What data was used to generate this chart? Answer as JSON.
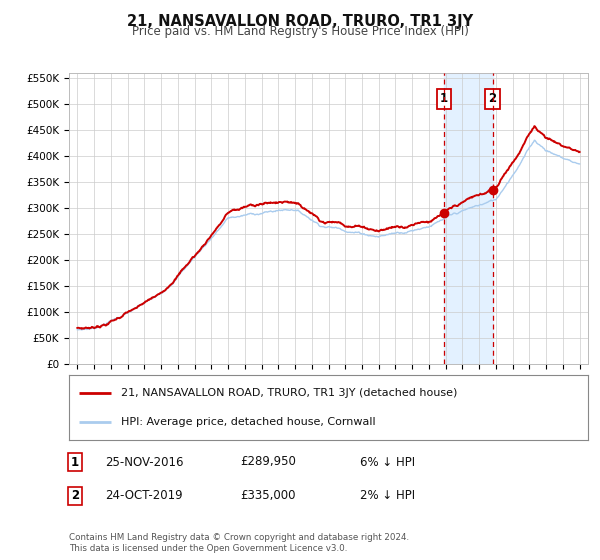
{
  "title": "21, NANSAVALLON ROAD, TRURO, TR1 3JY",
  "subtitle": "Price paid vs. HM Land Registry's House Price Index (HPI)",
  "legend_label_red": "21, NANSAVALLON ROAD, TRURO, TR1 3JY (detached house)",
  "legend_label_blue": "HPI: Average price, detached house, Cornwall",
  "footer_line1": "Contains HM Land Registry data © Crown copyright and database right 2024.",
  "footer_line2": "This data is licensed under the Open Government Licence v3.0.",
  "transaction1_label": "1",
  "transaction1_date": "25-NOV-2016",
  "transaction1_price": "£289,950",
  "transaction1_hpi": "6% ↓ HPI",
  "transaction2_label": "2",
  "transaction2_date": "24-OCT-2019",
  "transaction2_price": "£335,000",
  "transaction2_hpi": "2% ↓ HPI",
  "transaction1_year": 2016.9,
  "transaction2_year": 2019.8,
  "transaction1_value": 289950,
  "transaction2_value": 335000,
  "shade_start": 2016.9,
  "shade_end": 2019.8,
  "ylim": [
    0,
    560000
  ],
  "xlim_start": 1994.5,
  "xlim_end": 2025.5,
  "color_red": "#cc0000",
  "color_blue": "#aaccee",
  "color_shade": "#ddeeff",
  "color_dashed": "#cc0000",
  "grid_color": "#cccccc",
  "background_color": "#ffffff",
  "yticks": [
    0,
    50000,
    100000,
    150000,
    200000,
    250000,
    300000,
    350000,
    400000,
    450000,
    500000,
    550000
  ],
  "ytick_labels": [
    "£0",
    "£50K",
    "£100K",
    "£150K",
    "£200K",
    "£250K",
    "£300K",
    "£350K",
    "£400K",
    "£450K",
    "£500K",
    "£550K"
  ],
  "xticks": [
    1995,
    1996,
    1997,
    1998,
    1999,
    2000,
    2001,
    2002,
    2003,
    2004,
    2005,
    2006,
    2007,
    2008,
    2009,
    2010,
    2011,
    2012,
    2013,
    2014,
    2015,
    2016,
    2017,
    2018,
    2019,
    2020,
    2021,
    2022,
    2023,
    2024,
    2025
  ]
}
